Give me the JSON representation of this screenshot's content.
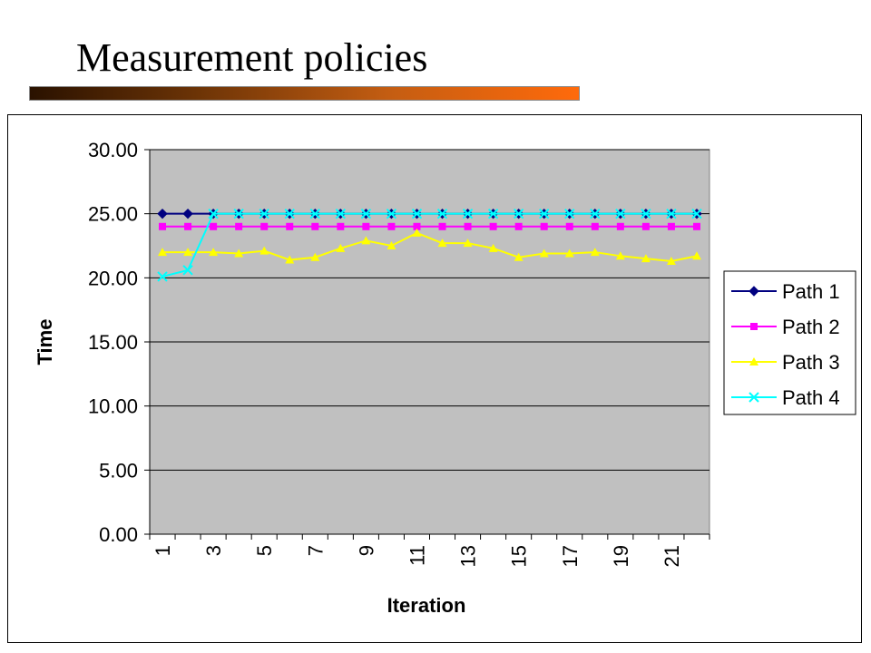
{
  "slide": {
    "title": "Measurement policies"
  },
  "colors": {
    "plot_background": "#c0c0c0",
    "path1": "#000080",
    "path2": "#ff00ff",
    "path3": "#ffff00",
    "path4": "#00ffff"
  },
  "chart_data": {
    "type": "line",
    "title": "",
    "xlabel": "Iteration",
    "ylabel": "Time",
    "ylim": [
      0,
      30
    ],
    "yticks": [
      "0.00",
      "5.00",
      "10.00",
      "15.00",
      "20.00",
      "25.00",
      "30.00"
    ],
    "x": [
      1,
      2,
      3,
      4,
      5,
      6,
      7,
      8,
      9,
      10,
      11,
      12,
      13,
      14,
      15,
      16,
      17,
      18,
      19,
      20,
      21,
      22
    ],
    "xtick_labels": [
      "1",
      "3",
      "5",
      "7",
      "9",
      "11",
      "13",
      "15",
      "17",
      "19",
      "21"
    ],
    "grid": "horizontal",
    "legend_position": "right",
    "series": [
      {
        "name": "Path 1",
        "marker": "diamond",
        "color": "#000080",
        "values": [
          25,
          25,
          25,
          25,
          25,
          25,
          25,
          25,
          25,
          25,
          25,
          25,
          25,
          25,
          25,
          25,
          25,
          25,
          25,
          25,
          25,
          25
        ]
      },
      {
        "name": "Path 2",
        "marker": "square",
        "color": "#ff00ff",
        "values": [
          24,
          24,
          24,
          24,
          24,
          24,
          24,
          24,
          24,
          24,
          24,
          24,
          24,
          24,
          24,
          24,
          24,
          24,
          24,
          24,
          24,
          24
        ]
      },
      {
        "name": "Path 3",
        "marker": "triangle",
        "color": "#ffff00",
        "values": [
          22.0,
          22.0,
          22.0,
          21.9,
          22.1,
          21.4,
          21.6,
          22.3,
          22.9,
          22.5,
          23.5,
          22.7,
          22.7,
          22.3,
          21.6,
          21.9,
          21.9,
          22.0,
          21.7,
          21.5,
          21.3,
          21.7
        ]
      },
      {
        "name": "Path 4",
        "marker": "x",
        "color": "#00ffff",
        "values": [
          20.1,
          20.6,
          25,
          25,
          25,
          25,
          25,
          25,
          25,
          25,
          25,
          25,
          25,
          25,
          25,
          25,
          25,
          25,
          25,
          25,
          25,
          25
        ]
      }
    ]
  }
}
